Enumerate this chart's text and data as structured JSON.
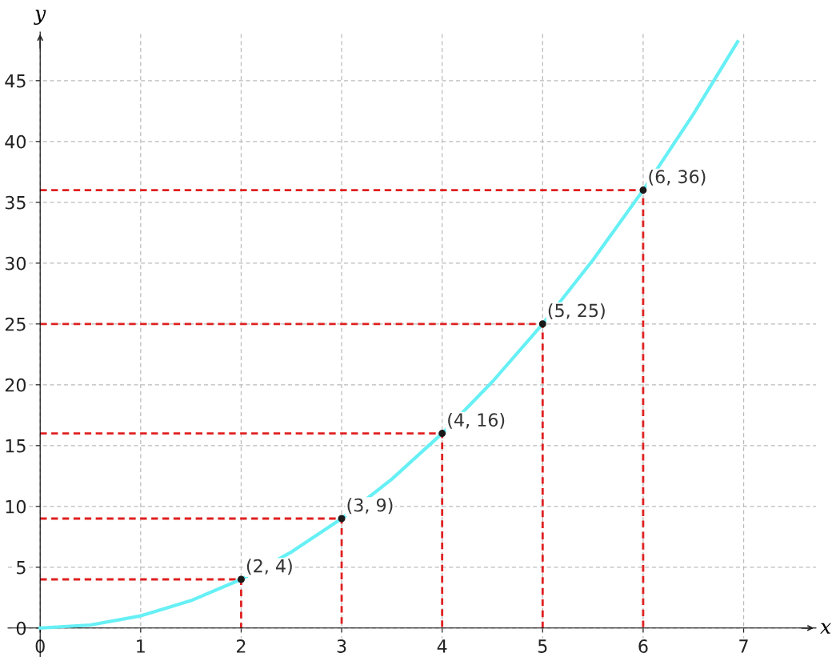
{
  "chart_data": {
    "type": "line",
    "xlabel": "x",
    "ylabel": "y",
    "xlim": [
      -0.32,
      7.72
    ],
    "ylim": [
      -1,
      49
    ],
    "xticks": [
      0,
      1,
      2,
      3,
      4,
      5,
      6,
      7
    ],
    "yticks": [
      0,
      5,
      10,
      15,
      20,
      25,
      30,
      35,
      40,
      45
    ],
    "grid": true,
    "series": [
      {
        "color": "#66f0f5",
        "x": [
          0,
          0.5,
          1,
          1.5,
          2,
          2.5,
          3,
          3.5,
          4,
          4.5,
          5,
          5.5,
          6,
          6.5,
          6.94
        ],
        "values": [
          0,
          0.25,
          1,
          2.25,
          4,
          6.25,
          9,
          12.25,
          16,
          20.25,
          25,
          30.25,
          36,
          42.25,
          48.2
        ]
      },
      {
        "type": "line",
        "color": "#e02020",
        "line_style": "dashed",
        "x": [
          0,
          2,
          2
        ],
        "values": [
          4,
          4,
          0
        ]
      },
      {
        "type": "line",
        "color": "#e02020",
        "line_style": "dashed",
        "x": [
          0,
          3,
          3
        ],
        "values": [
          9,
          9,
          0
        ]
      },
      {
        "type": "line",
        "color": "#e02020",
        "line_style": "dashed",
        "x": [
          0,
          4,
          4
        ],
        "values": [
          16,
          16,
          0
        ]
      },
      {
        "type": "line",
        "color": "#e02020",
        "line_style": "dashed",
        "x": [
          0,
          5,
          5
        ],
        "values": [
          25,
          25,
          0
        ]
      },
      {
        "type": "line",
        "color": "#e02020",
        "line_style": "dashed",
        "x": [
          0,
          6,
          6
        ],
        "values": [
          36,
          36,
          0
        ]
      },
      {
        "type": "scatter",
        "color": "#1a1a1a",
        "marker": "circle",
        "x": [
          2,
          3,
          4,
          5,
          6
        ],
        "values": [
          4,
          9,
          16,
          25,
          36
        ]
      }
    ],
    "annotations": [
      {
        "text": "(2, 4)",
        "x": 2,
        "y": 4
      },
      {
        "text": "(3, 9)",
        "x": 3,
        "y": 9
      },
      {
        "text": "(4, 16)",
        "x": 4,
        "y": 16
      },
      {
        "text": "(5, 25)",
        "x": 5,
        "y": 25
      },
      {
        "text": "(6, 36)",
        "x": 6,
        "y": 36
      }
    ]
  }
}
